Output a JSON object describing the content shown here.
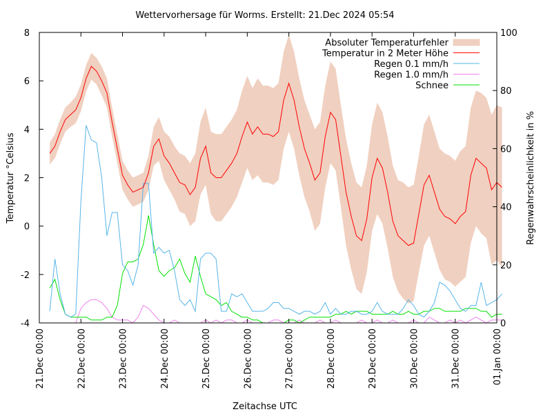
{
  "chart_data": {
    "type": "line",
    "title": "Wettervorhersage für Worms. Erstellt: 21.Dec 2024 05:54",
    "xlabel": "Zeitachse UTC",
    "ylabel": "Temperatur °Celsius",
    "y2label": "Regenwahrscheinlichkeit in %",
    "ylim": [
      -4,
      8
    ],
    "y2lim": [
      0,
      100
    ],
    "xlim_days": [
      0,
      11
    ],
    "yticks": [
      "-4",
      "-2",
      "0",
      "2",
      "4",
      "6",
      "8"
    ],
    "y2ticks": [
      "0",
      "20",
      "40",
      "60",
      "80",
      "100"
    ],
    "xticks": [
      "21.Dec 00:00",
      "22.Dec 00:00",
      "23.Dec 00:00",
      "24.Dec 00:00",
      "25.Dec 00:00",
      "26.Dec 00:00",
      "27.Dec 00:00",
      "28.Dec 00:00",
      "29.Dec 00:00",
      "30.Dec 00:00",
      "31.Dec 00:00",
      "01.Jan 00:00"
    ],
    "grid": false,
    "legend_position": "top-right",
    "legend": [
      {
        "label": "Absoluter Temperaturfehler",
        "kind": "band",
        "color": "#f0d0c0"
      },
      {
        "label": "Temperatur in 2 Meter Höhe",
        "kind": "line",
        "color": "#ff0000"
      },
      {
        "label": "Regen 0.1 mm/h",
        "kind": "line",
        "color": "#56b4e9"
      },
      {
        "label": "Regen 1.0 mm/h",
        "kind": "line",
        "color": "#ee82ee"
      },
      {
        "label": "Schnee",
        "kind": "line",
        "color": "#00e000"
      }
    ],
    "x_step_hours": 3,
    "x_start_hours": 6,
    "temperature": [
      3.0,
      3.3,
      3.9,
      4.4,
      4.6,
      4.8,
      5.3,
      6.1,
      6.6,
      6.4,
      6.0,
      5.5,
      4.3,
      3.2,
      2.1,
      1.7,
      1.4,
      1.5,
      1.6,
      2.2,
      3.3,
      3.6,
      2.9,
      2.6,
      2.2,
      1.8,
      1.7,
      1.3,
      1.6,
      2.8,
      3.3,
      2.2,
      2.0,
      2.0,
      2.3,
      2.6,
      3.0,
      3.7,
      4.3,
      3.8,
      4.1,
      3.8,
      3.8,
      3.7,
      3.9,
      5.2,
      5.9,
      5.2,
      4.1,
      3.2,
      2.6,
      1.9,
      2.2,
      3.7,
      4.7,
      4.4,
      2.9,
      1.4,
      0.4,
      -0.4,
      -0.6,
      0.3,
      2.0,
      2.8,
      2.4,
      1.4,
      0.2,
      -0.4,
      -0.6,
      -0.8,
      -0.7,
      0.5,
      1.7,
      2.1,
      1.4,
      0.7,
      0.4,
      0.3,
      0.1,
      0.4,
      0.6,
      2.1,
      2.8,
      2.6,
      2.4,
      1.5,
      1.8,
      1.6
    ],
    "temperature_error": [
      0.45,
      0.5,
      0.5,
      0.5,
      0.5,
      0.55,
      0.55,
      0.55,
      0.55,
      0.55,
      0.6,
      0.6,
      0.6,
      0.6,
      0.6,
      0.6,
      0.6,
      0.6,
      0.6,
      0.7,
      0.8,
      0.9,
      1.0,
      1.1,
      1.1,
      1.2,
      1.2,
      1.3,
      1.4,
      1.5,
      1.6,
      1.7,
      1.8,
      1.8,
      1.8,
      1.8,
      1.8,
      1.9,
      1.9,
      1.9,
      2.0,
      2.0,
      2.0,
      2.0,
      2.0,
      2.0,
      2.0,
      2.0,
      2.0,
      2.0,
      2.0,
      2.1,
      2.1,
      2.1,
      2.1,
      2.1,
      2.1,
      2.2,
      2.2,
      2.2,
      2.2,
      2.2,
      2.2,
      2.3,
      2.3,
      2.3,
      2.3,
      2.3,
      2.4,
      2.4,
      2.4,
      2.4,
      2.5,
      2.5,
      2.5,
      2.5,
      2.6,
      2.6,
      2.6,
      2.7,
      2.7,
      2.8,
      2.8,
      2.9,
      2.9,
      3.1,
      3.2,
      3.3
    ],
    "regen_0_1_percent": [
      4,
      22,
      10,
      3,
      2,
      3,
      42,
      68,
      63,
      62,
      50,
      30,
      38,
      38,
      20,
      18,
      13,
      20,
      48,
      48,
      24,
      26,
      24,
      25,
      18,
      8,
      6,
      8,
      4,
      22,
      24,
      24,
      22,
      4,
      4,
      10,
      9,
      10,
      7,
      4,
      4,
      4,
      5,
      7,
      7,
      5,
      5,
      4,
      3,
      4,
      4,
      3,
      4,
      7,
      3,
      5,
      3,
      3,
      4,
      4,
      3,
      3,
      4,
      7,
      4,
      3,
      3,
      3,
      5,
      8,
      6,
      3,
      2,
      4,
      7,
      14,
      13,
      11,
      8,
      5,
      4,
      6,
      6,
      14,
      6,
      7,
      8,
      10
    ],
    "regen_1_0_percent": [
      0,
      0,
      0,
      0,
      0,
      0,
      5,
      7,
      8,
      8,
      7,
      5,
      2,
      1,
      1,
      1,
      0,
      2,
      6,
      5,
      3,
      1,
      0,
      0,
      1,
      0,
      0,
      0,
      0,
      0,
      1,
      0,
      1,
      0,
      1,
      1,
      0,
      0,
      1,
      0,
      0,
      0,
      0,
      1,
      1,
      0,
      0,
      0,
      1,
      0,
      0,
      0,
      1,
      0,
      0,
      1,
      0,
      0,
      0,
      0,
      1,
      0,
      0,
      1,
      0,
      0,
      1,
      0,
      0,
      0,
      1,
      0,
      0,
      2,
      1,
      0,
      0,
      1,
      0,
      1,
      0,
      1,
      2,
      1,
      0,
      1,
      1,
      1
    ],
    "schnee_percent": [
      12,
      15,
      8,
      3,
      2,
      2,
      2,
      2,
      1,
      1,
      1,
      2,
      2,
      6,
      17,
      21,
      21,
      22,
      27,
      37,
      27,
      18,
      16,
      18,
      19,
      22,
      17,
      14,
      23,
      16,
      10,
      9,
      8,
      6,
      7,
      4,
      3,
      2,
      2,
      1,
      1,
      0,
      0,
      0,
      0,
      0,
      1,
      1,
      0,
      1,
      2,
      2,
      2,
      2,
      2,
      3,
      3,
      4,
      3,
      4,
      4,
      4,
      3,
      3,
      3,
      3,
      4,
      3,
      3,
      4,
      3,
      3,
      4,
      4,
      5,
      5,
      4,
      4,
      4,
      4,
      5,
      5,
      5,
      4,
      4,
      2,
      3,
      3
    ]
  }
}
